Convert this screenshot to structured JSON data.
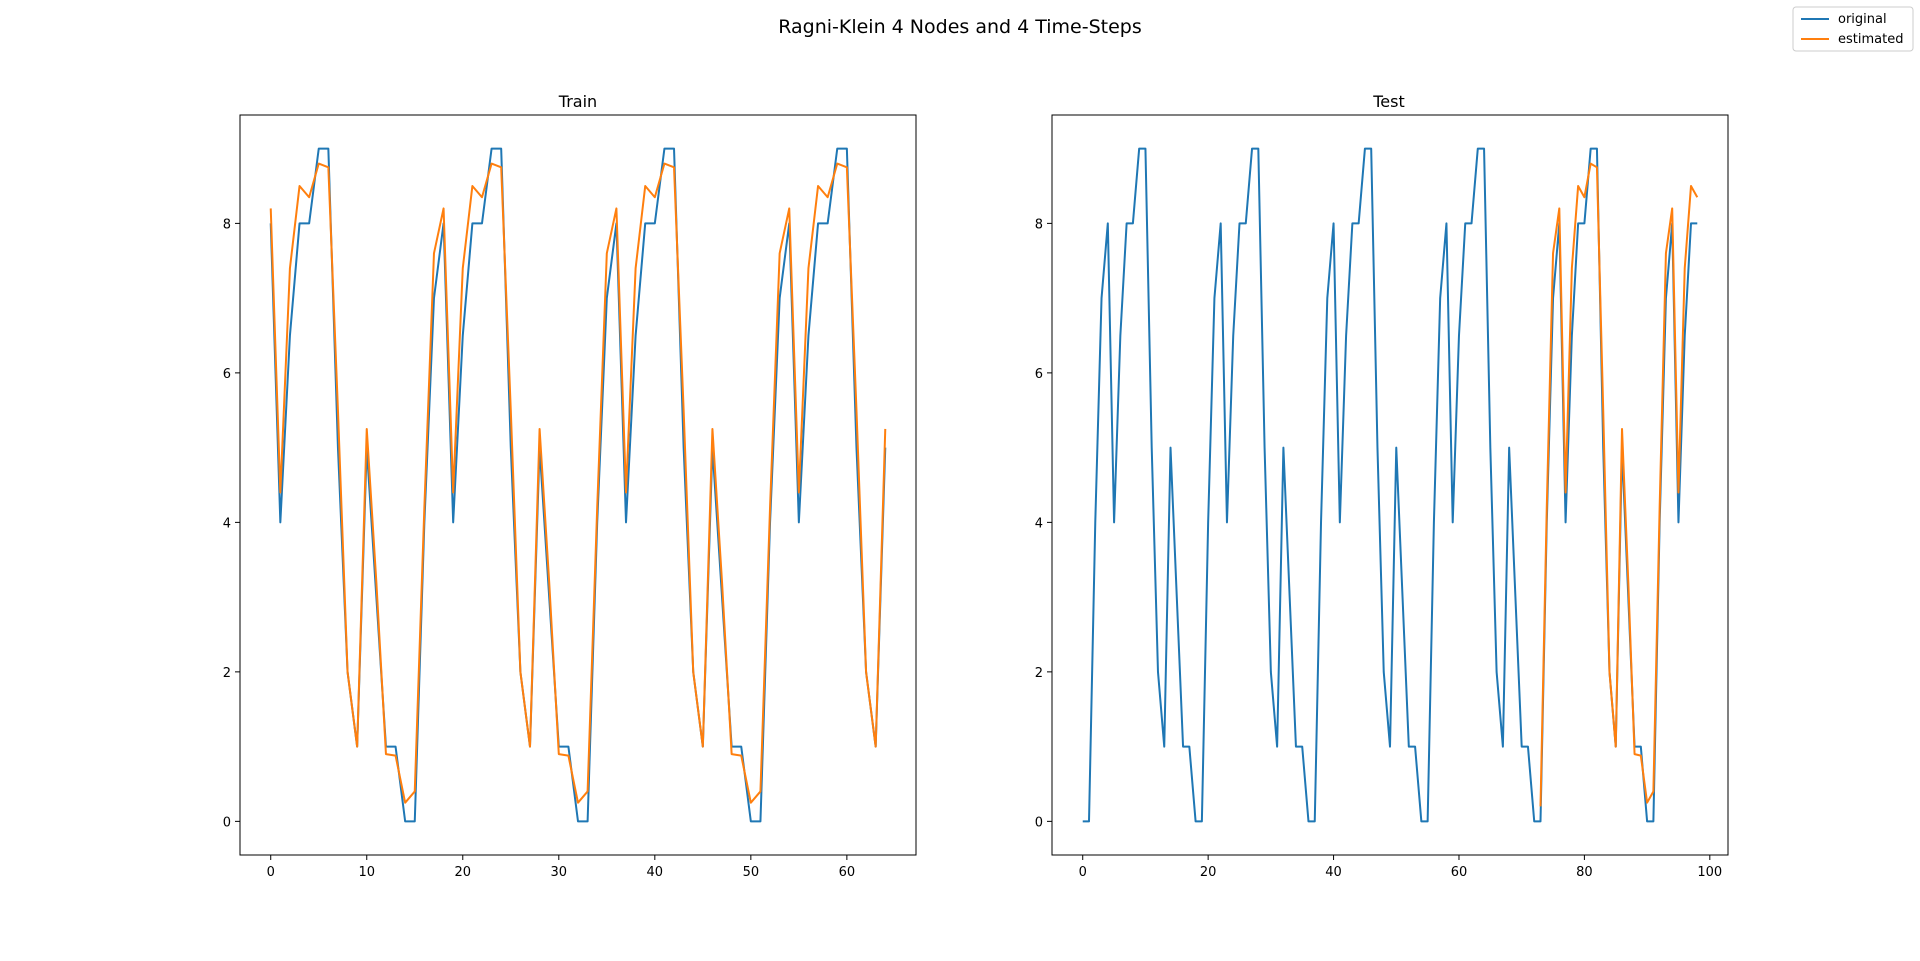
{
  "figure": {
    "suptitle": "Ragni-Klein 4 Nodes and 4 Time-Steps"
  },
  "legend": {
    "placement": "top-right",
    "entries": [
      {
        "label": "original",
        "color": "#1f77b4"
      },
      {
        "label": "estimated",
        "color": "#ff7f0e"
      }
    ]
  },
  "chart_data": [
    {
      "type": "line",
      "title": "Train",
      "xlabel": "",
      "ylabel": "",
      "xlim": [
        -3.2,
        67.2
      ],
      "ylim": [
        -0.45,
        9.45
      ],
      "xticks": [
        0,
        10,
        20,
        30,
        40,
        50,
        60
      ],
      "yticks": [
        0,
        2,
        4,
        6,
        8
      ],
      "series": [
        {
          "name": "original",
          "color": "#1f77b4",
          "x": [
            0,
            1,
            2,
            3,
            4,
            5,
            6,
            7,
            8,
            9,
            10,
            11,
            12,
            13,
            14,
            15,
            16,
            17,
            18,
            19,
            20,
            21,
            22,
            23,
            24,
            25,
            26,
            27,
            28,
            29,
            30,
            31,
            32,
            33,
            34,
            35,
            36,
            37,
            38,
            39,
            40,
            41,
            42,
            43,
            44,
            45,
            46,
            47,
            48,
            49,
            50,
            51,
            52,
            53,
            54,
            55,
            56,
            57,
            58,
            59,
            60,
            61,
            62,
            63,
            64
          ],
          "y": [
            8,
            4,
            6.5,
            8,
            8,
            9,
            9,
            5,
            2,
            1,
            5,
            3,
            1,
            1,
            0,
            0,
            4,
            7,
            8,
            4,
            6.5,
            8,
            8,
            9,
            9,
            5,
            2,
            1,
            5,
            3,
            1,
            1,
            0,
            0,
            4,
            7,
            8,
            4,
            6.5,
            8,
            8,
            9,
            9,
            5,
            2,
            1,
            5,
            3,
            1,
            1,
            0,
            0,
            4,
            7,
            8,
            4,
            6.5,
            8,
            8,
            9,
            9,
            5,
            2,
            1,
            5
          ]
        },
        {
          "name": "estimated",
          "color": "#ff7f0e",
          "x": [
            0,
            1,
            2,
            3,
            4,
            5,
            6,
            7,
            8,
            9,
            10,
            11,
            12,
            13,
            14,
            15,
            16,
            17,
            18,
            19,
            20,
            21,
            22,
            23,
            24,
            25,
            26,
            27,
            28,
            29,
            30,
            31,
            32,
            33,
            34,
            35,
            36,
            37,
            38,
            39,
            40,
            41,
            42,
            43,
            44,
            45,
            46,
            47,
            48,
            49,
            50,
            51,
            52,
            53,
            54,
            55,
            56,
            57,
            58,
            59,
            60,
            61,
            62,
            63,
            64
          ],
          "y": [
            8.2,
            4.4,
            7.4,
            8.5,
            8.35,
            8.8,
            8.75,
            5.5,
            2,
            1,
            5.25,
            3.2,
            0.9,
            0.88,
            0.25,
            0.4,
            4.2,
            7.6,
            8.2,
            4.4,
            7.4,
            8.5,
            8.35,
            8.8,
            8.75,
            5.5,
            2,
            1,
            5.25,
            3.2,
            0.9,
            0.88,
            0.25,
            0.4,
            4.2,
            7.6,
            8.2,
            4.4,
            7.4,
            8.5,
            8.35,
            8.8,
            8.75,
            5.5,
            2,
            1,
            5.25,
            3.2,
            0.9,
            0.88,
            0.25,
            0.4,
            4.2,
            7.6,
            8.2,
            4.4,
            7.4,
            8.5,
            8.35,
            8.8,
            8.75,
            5.5,
            2,
            1,
            5.25
          ]
        }
      ]
    },
    {
      "type": "line",
      "title": "Test",
      "xlabel": "",
      "ylabel": "",
      "xlim": [
        -4.9,
        102.9
      ],
      "ylim": [
        -0.45,
        9.45
      ],
      "xticks": [
        0,
        20,
        40,
        60,
        80,
        100
      ],
      "yticks": [
        0,
        2,
        4,
        6,
        8
      ],
      "series": [
        {
          "name": "original",
          "color": "#1f77b4",
          "x": [
            0,
            1,
            2,
            3,
            4,
            5,
            6,
            7,
            8,
            9,
            10,
            11,
            12,
            13,
            14,
            15,
            16,
            17,
            18,
            19,
            20,
            21,
            22,
            23,
            24,
            25,
            26,
            27,
            28,
            29,
            30,
            31,
            32,
            33,
            34,
            35,
            36,
            37,
            38,
            39,
            40,
            41,
            42,
            43,
            44,
            45,
            46,
            47,
            48,
            49,
            50,
            51,
            52,
            53,
            54,
            55,
            56,
            57,
            58,
            59,
            60,
            61,
            62,
            63,
            64,
            65,
            66,
            67,
            68,
            69,
            70,
            71,
            72,
            73,
            74,
            75,
            76,
            77,
            78,
            79,
            80,
            81,
            82,
            83,
            84,
            85,
            86,
            87,
            88,
            89,
            90,
            91,
            92,
            93,
            94,
            95,
            96,
            97,
            98
          ],
          "y": [
            0,
            0,
            4,
            7,
            8,
            4,
            6.5,
            8,
            8,
            9,
            9,
            5,
            2,
            1,
            5,
            3,
            1,
            1,
            0,
            0,
            4,
            7,
            8,
            4,
            6.5,
            8,
            8,
            9,
            9,
            5,
            2,
            1,
            5,
            3,
            1,
            1,
            0,
            0,
            4,
            7,
            8,
            4,
            6.5,
            8,
            8,
            9,
            9,
            5,
            2,
            1,
            5,
            3,
            1,
            1,
            0,
            0,
            4,
            7,
            8,
            4,
            6.5,
            8,
            8,
            9,
            9,
            5,
            2,
            1,
            5,
            3,
            1,
            1,
            0,
            0,
            4,
            7,
            8,
            4,
            6.5,
            8,
            8,
            9,
            9,
            5,
            2,
            1,
            5,
            3,
            1,
            1,
            0,
            0,
            4,
            7,
            8,
            4,
            6.5,
            8,
            8
          ]
        },
        {
          "name": "estimated",
          "color": "#ff7f0e",
          "x": [
            73,
            74,
            75,
            76,
            77,
            78,
            79,
            80,
            81,
            82,
            83,
            84,
            85,
            86,
            87,
            88,
            89,
            90,
            91,
            92,
            93,
            94,
            95,
            96,
            97,
            98
          ],
          "y": [
            0.2,
            4.2,
            7.6,
            8.2,
            4.4,
            7.4,
            8.5,
            8.35,
            8.8,
            8.75,
            5.5,
            2,
            1,
            5.25,
            3.2,
            0.9,
            0.88,
            0.25,
            0.4,
            4.2,
            7.6,
            8.2,
            4.4,
            7.4,
            8.5,
            8.35
          ]
        }
      ]
    }
  ]
}
